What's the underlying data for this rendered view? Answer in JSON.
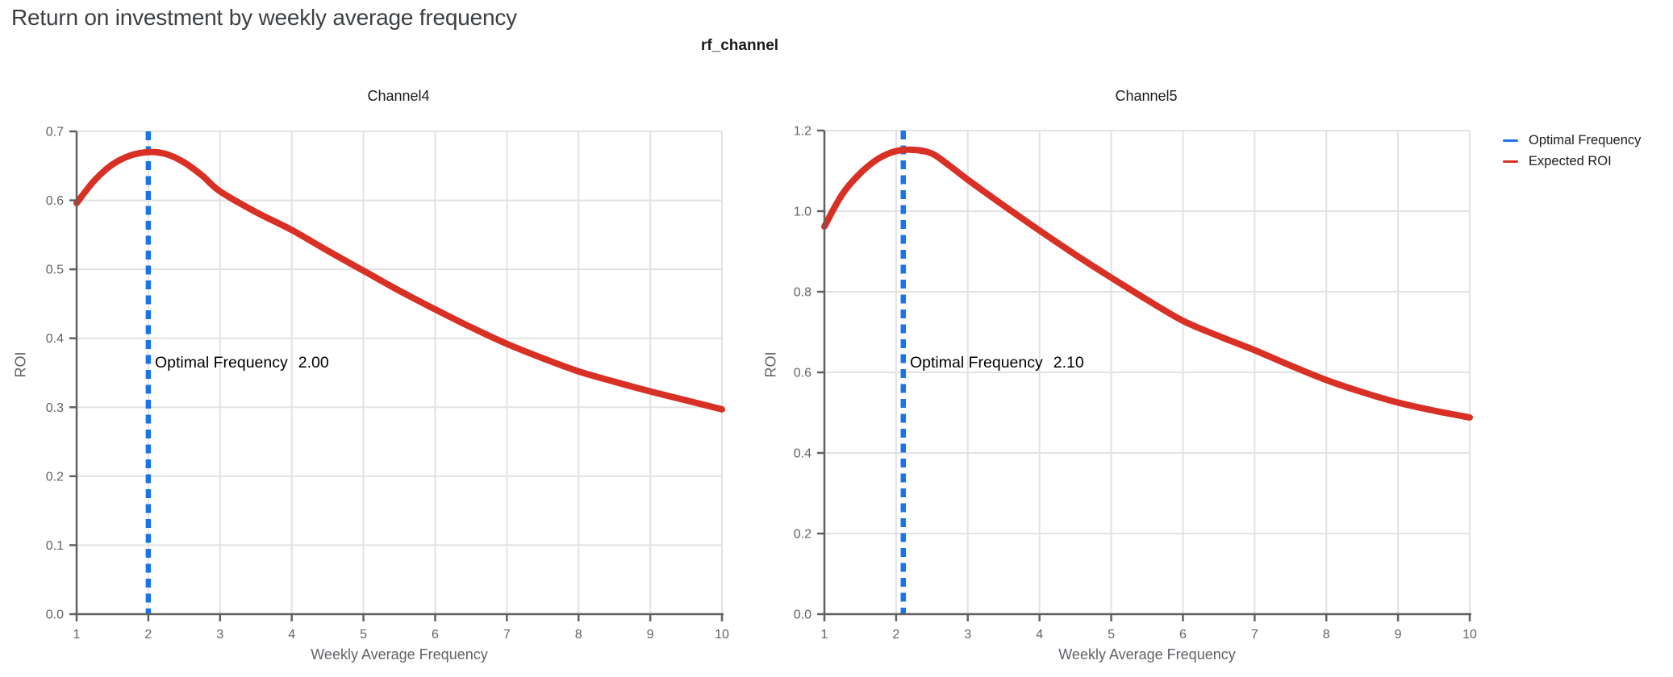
{
  "header": {
    "title": "Return on investment by weekly average frequency"
  },
  "facet": {
    "field_label": "rf_channel"
  },
  "legend": {
    "items": [
      {
        "label": "Optimal Frequency",
        "color": "#1A73E8"
      },
      {
        "label": "Expected ROI",
        "color": "#D93025"
      }
    ]
  },
  "colors": {
    "optimal_frequency_line": "#1A73E8",
    "expected_roi_line": "#D93025",
    "grid": "#E2E2E2",
    "axis": "#616161",
    "tick_label": "#5F6368"
  },
  "chart_data": [
    {
      "type": "line",
      "title": "Channel4",
      "xlabel": "Weekly Average Frequency",
      "ylabel": "ROI",
      "xlim": [
        1,
        10
      ],
      "ylim": [
        0,
        0.7
      ],
      "x_ticks": [
        1,
        2,
        3,
        4,
        5,
        6,
        7,
        8,
        9,
        10
      ],
      "y_ticks": [
        0.0,
        0.1,
        0.2,
        0.3,
        0.4,
        0.5,
        0.6,
        0.7
      ],
      "grid": true,
      "series": [
        {
          "name": "Expected ROI",
          "x": [
            1,
            1.25,
            1.5,
            1.75,
            2,
            2.25,
            2.5,
            2.75,
            3,
            3.5,
            4,
            4.5,
            5,
            5.5,
            6,
            6.5,
            7,
            7.5,
            8,
            8.5,
            9,
            9.5,
            10
          ],
          "y": [
            0.596,
            0.629,
            0.652,
            0.665,
            0.67,
            0.667,
            0.655,
            0.636,
            0.613,
            0.583,
            0.557,
            0.527,
            0.498,
            0.469,
            0.442,
            0.416,
            0.392,
            0.371,
            0.352,
            0.337,
            0.323,
            0.31,
            0.297
          ]
        }
      ],
      "optimal_frequency": 2.0,
      "annotation": {
        "label": "Optimal Frequency",
        "value": "2.00"
      }
    },
    {
      "type": "line",
      "title": "Channel5",
      "xlabel": "Weekly Average Frequency",
      "ylabel": "ROI",
      "xlim": [
        1,
        10
      ],
      "ylim": [
        0,
        1.2
      ],
      "x_ticks": [
        1,
        2,
        3,
        4,
        5,
        6,
        7,
        8,
        9,
        10
      ],
      "y_ticks": [
        0.0,
        0.2,
        0.4,
        0.6,
        0.8,
        1.0,
        1.2
      ],
      "grid": true,
      "series": [
        {
          "name": "Expected ROI",
          "x": [
            1,
            1.25,
            1.5,
            1.75,
            2,
            2.25,
            2.5,
            2.75,
            3,
            3.5,
            4,
            4.5,
            5,
            5.5,
            6,
            6.5,
            7,
            7.5,
            8,
            8.5,
            9,
            9.5,
            10
          ],
          "y": [
            0.962,
            1.042,
            1.094,
            1.13,
            1.149,
            1.152,
            1.143,
            1.112,
            1.078,
            1.014,
            0.952,
            0.892,
            0.835,
            0.78,
            0.728,
            0.69,
            0.655,
            0.617,
            0.581,
            0.551,
            0.525,
            0.505,
            0.488
          ]
        }
      ],
      "optimal_frequency": 2.1,
      "annotation": {
        "label": "Optimal Frequency",
        "value": "2.10"
      }
    }
  ]
}
